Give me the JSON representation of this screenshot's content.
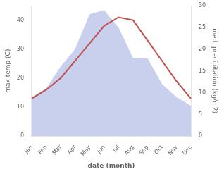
{
  "chart_data": {
    "type": "line",
    "categories": [
      "Jan",
      "Feb",
      "Mar",
      "Apr",
      "May",
      "Jun",
      "Jul",
      "Aug",
      "Sep",
      "Oct",
      "Nov",
      "Dec"
    ],
    "series": [
      {
        "type": "line",
        "color": "#c0504d",
        "values": [
          13,
          16,
          20,
          26,
          32,
          38,
          41,
          40,
          33,
          26,
          19,
          13
        ]
      },
      {
        "type": "area",
        "color": "#c8d0ee",
        "axis": "y2",
        "values": [
          9,
          11,
          16,
          20,
          28,
          29,
          25,
          18,
          18,
          12,
          9,
          7
        ]
      }
    ],
    "xlabel": "date (month)",
    "ylabel": "max temp (C)",
    "y2label": "med. precipitation (kg/m2)",
    "ylim": [
      0,
      45
    ],
    "yticks": [
      0,
      10,
      20,
      30,
      40
    ],
    "y2lim": [
      0,
      30
    ],
    "y2ticks": [
      0,
      5,
      10,
      15,
      20,
      25,
      30
    ],
    "grid": false
  }
}
